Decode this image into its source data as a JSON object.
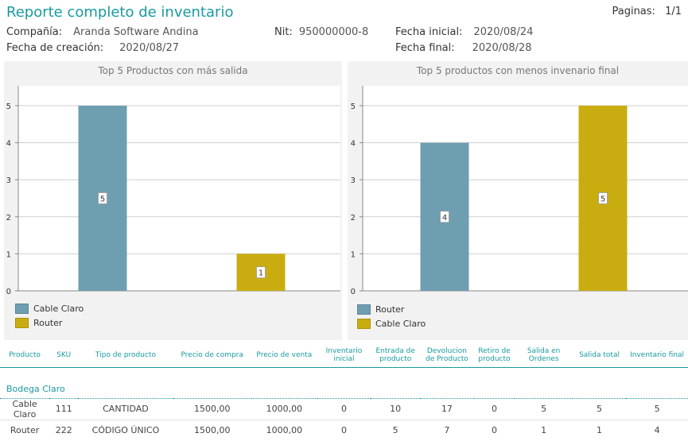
{
  "header": {
    "title": "Reporte completo de inventario",
    "pages_label": "Paginas:",
    "pages_value": "1/1"
  },
  "meta": {
    "company_label": "Compañía:",
    "company_value": "Aranda Software Andina",
    "nit_label": "Nit:",
    "nit_value": "950000000-8",
    "start_date_label": "Fecha inicial:",
    "start_date_value": "2020/08/24",
    "created_label": "Fecha de creación:",
    "created_value": "2020/08/27",
    "end_date_label": "Fecha final:",
    "end_date_value": "2020/08/28"
  },
  "colors": {
    "accent": "#1a9aa0",
    "series_blue": "#6e9fb0",
    "series_gold": "#c9ad10"
  },
  "chart_data": [
    {
      "type": "bar",
      "title": "Top 5 Productos con más salida",
      "ylim": [
        0,
        5
      ],
      "yticks": [
        0,
        1,
        2,
        3,
        4,
        5
      ],
      "grid": true,
      "legend_position": "bottom-left",
      "series": [
        {
          "name": "Cable Claro",
          "values": [
            5
          ],
          "color": "#6e9fb0"
        },
        {
          "name": "Router",
          "values": [
            1
          ],
          "color": "#c9ad10"
        }
      ]
    },
    {
      "type": "bar",
      "title": "Top 5 productos con menos invenario final",
      "ylim": [
        0,
        5
      ],
      "yticks": [
        0,
        1,
        2,
        3,
        4,
        5
      ],
      "grid": true,
      "legend_position": "bottom-left",
      "series": [
        {
          "name": "Router",
          "values": [
            4
          ],
          "color": "#6e9fb0"
        },
        {
          "name": "Cable Claro",
          "values": [
            5
          ],
          "color": "#c9ad10"
        }
      ]
    }
  ],
  "table": {
    "columns": [
      "Producto",
      "SKU",
      "Tipo de producto",
      "Precio de compra",
      "Precio de venta",
      "Inventario inicial",
      "Entrada de producto",
      "Devolucion de Producto",
      "Retiro de producto",
      "Salida en Ordenes",
      "Salida total",
      "Inventario final"
    ],
    "group": "Bodega Claro",
    "rows": [
      [
        "Cable Claro",
        "111",
        "CANTIDAD",
        "1500,00",
        "1000,00",
        "0",
        "10",
        "17",
        "0",
        "5",
        "5",
        "5"
      ],
      [
        "Router",
        "222",
        "CÓDIGO ÚNICO",
        "1500,00",
        "1000,00",
        "0",
        "5",
        "7",
        "0",
        "1",
        "1",
        "4"
      ]
    ]
  }
}
